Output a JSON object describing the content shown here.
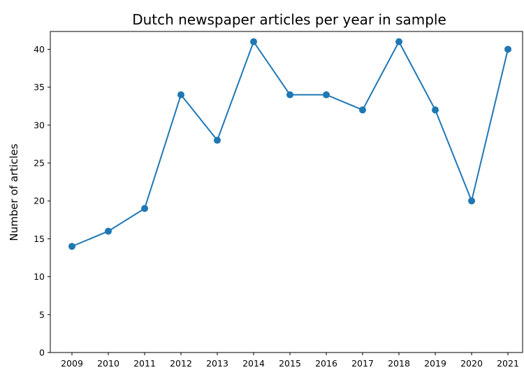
{
  "chart_data": {
    "type": "line",
    "title": "Dutch newspaper articles per year in sample",
    "xlabel": "",
    "ylabel": "Number of articles",
    "categories": [
      "2009",
      "2010",
      "2011",
      "2012",
      "2013",
      "2014",
      "2015",
      "2016",
      "2017",
      "2018",
      "2019",
      "2020",
      "2021"
    ],
    "series": [
      {
        "values": [
          14,
          16,
          19,
          34,
          28,
          41,
          34,
          34,
          32,
          41,
          32,
          20,
          40
        ],
        "color": "#1f77b4",
        "marker": "circle"
      }
    ],
    "yticks": [
      0,
      5,
      10,
      15,
      20,
      25,
      30,
      35,
      40
    ],
    "ylim": [
      0,
      42.35
    ],
    "grid": false,
    "legend": "none"
  }
}
